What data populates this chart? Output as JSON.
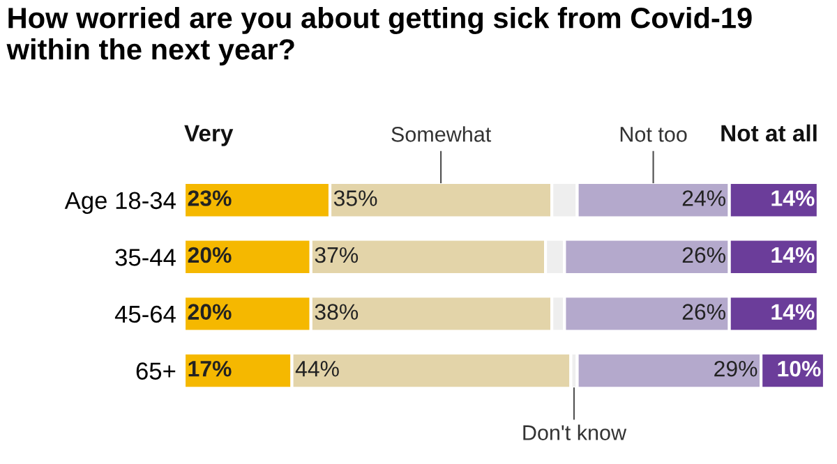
{
  "chart_data": {
    "type": "bar",
    "orientation": "horizontal",
    "stacked": true,
    "title": "How worried are you about getting sick from Covid-19 within the next year?",
    "categories": [
      "Age 18-34",
      "35-44",
      "45-64",
      "65+"
    ],
    "legend": false,
    "series": [
      {
        "name": "Very",
        "color": "#f5b800",
        "values": [
          23,
          20,
          20,
          17
        ],
        "value_labels": [
          "23%",
          "20%",
          "20%",
          "17%"
        ]
      },
      {
        "name": "Somewhat",
        "color": "#e3d4a9",
        "values": [
          35,
          37,
          38,
          44
        ],
        "value_labels": [
          "35%",
          "37%",
          "38%",
          "44%"
        ]
      },
      {
        "name": "Don't know",
        "color": "#eeeeee",
        "values": [
          4,
          3,
          2,
          1
        ]
      },
      {
        "name": "Not too",
        "color": "#b4a9cc",
        "values": [
          24,
          26,
          26,
          29
        ],
        "value_labels": [
          "24%",
          "26%",
          "26%",
          "29%"
        ]
      },
      {
        "name": "Not at all",
        "color": "#6b3d9a",
        "values": [
          14,
          14,
          14,
          10
        ],
        "value_labels": [
          "14%",
          "14%",
          "14%",
          "10%"
        ]
      }
    ]
  }
}
